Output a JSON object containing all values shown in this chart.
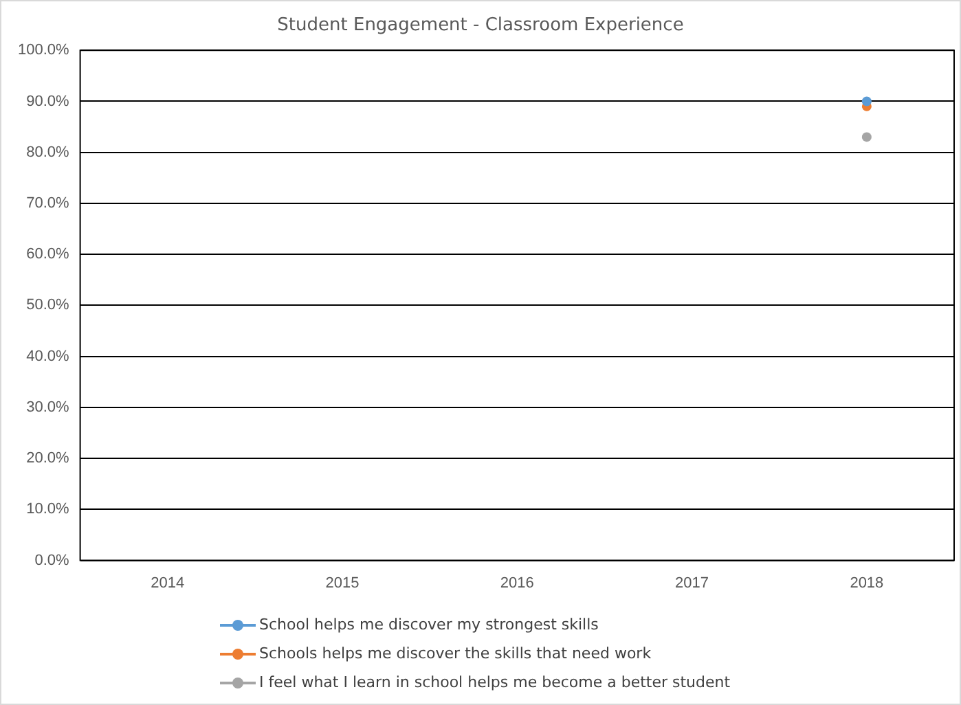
{
  "chart_data": {
    "type": "line",
    "title": "Student Engagement - Classroom Experience",
    "categories": [
      "2014",
      "2015",
      "2016",
      "2017",
      "2018"
    ],
    "series": [
      {
        "name": "School helps me discover my strongest skills",
        "color": "#5b9bd5",
        "values": [
          null,
          null,
          null,
          null,
          90
        ]
      },
      {
        "name": "Schools helps me discover the skills that need work",
        "color": "#ed7d31",
        "values": [
          null,
          null,
          null,
          null,
          89
        ]
      },
      {
        "name": "I feel what I learn in school helps me become a better student",
        "color": "#a5a5a5",
        "values": [
          null,
          null,
          null,
          null,
          83
        ]
      }
    ],
    "ylim": [
      0,
      100
    ],
    "yticks": [
      {
        "value": 0,
        "label": "0.0%"
      },
      {
        "value": 10,
        "label": "10.0%"
      },
      {
        "value": 20,
        "label": "20.0%"
      },
      {
        "value": 30,
        "label": "30.0%"
      },
      {
        "value": 40,
        "label": "40.0%"
      },
      {
        "value": 50,
        "label": "50.0%"
      },
      {
        "value": 60,
        "label": "60.0%"
      },
      {
        "value": 70,
        "label": "70.0%"
      },
      {
        "value": 80,
        "label": "80.0%"
      },
      {
        "value": 90,
        "label": "90.0%"
      },
      {
        "value": 100,
        "label": "100.0%"
      }
    ],
    "grid": "y",
    "legend": "bottom",
    "marker": "circle",
    "line_style": "solid"
  }
}
